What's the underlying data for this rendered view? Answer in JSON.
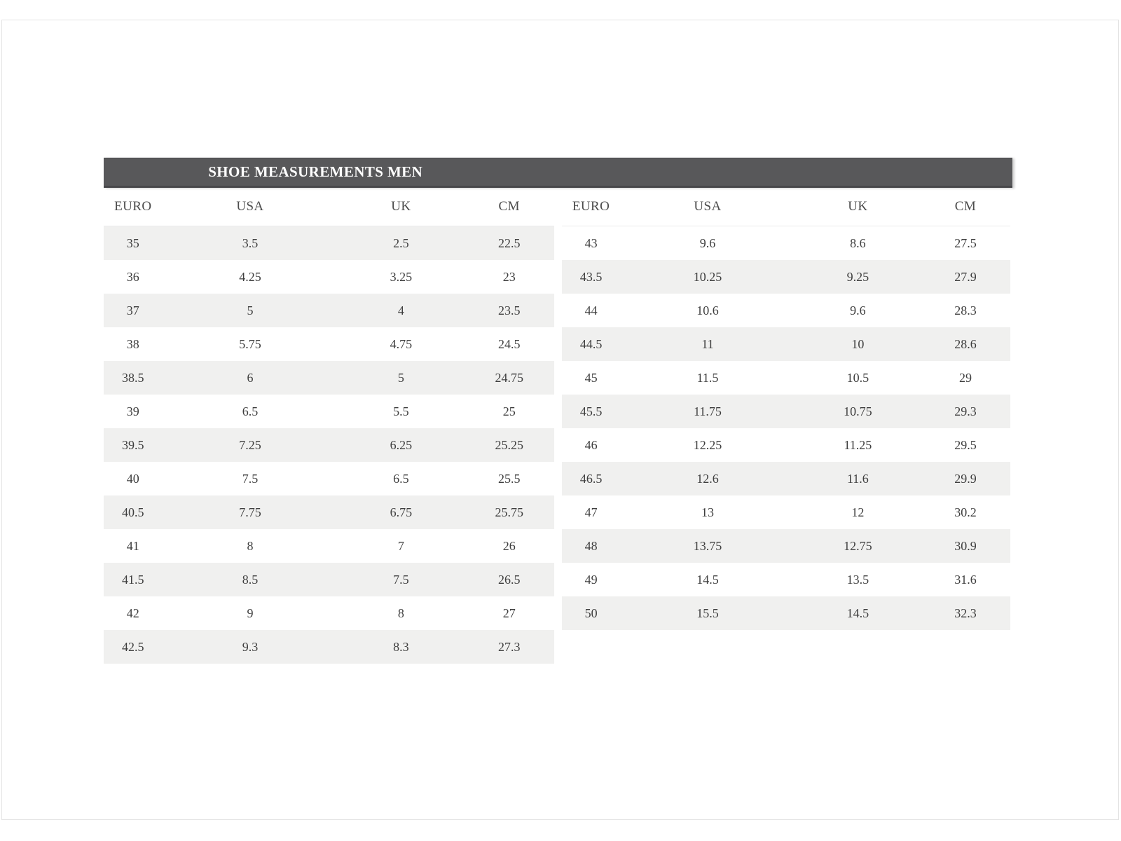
{
  "title_bar": {
    "label": "SHOE MEASUREMENTS MEN"
  },
  "columns": [
    "EURO",
    "USA",
    "UK",
    "CM"
  ],
  "tables": {
    "left": {
      "rows": [
        [
          "35",
          "3.5",
          "2.5",
          "22.5"
        ],
        [
          "36",
          "4.25",
          "3.25",
          "23"
        ],
        [
          "37",
          "5",
          "4",
          "23.5"
        ],
        [
          "38",
          "5.75",
          "4.75",
          "24.5"
        ],
        [
          "38.5",
          "6",
          "5",
          "24.75"
        ],
        [
          "39",
          "6.5",
          "5.5",
          "25"
        ],
        [
          "39.5",
          "7.25",
          "6.25",
          "25.25"
        ],
        [
          "40",
          "7.5",
          "6.5",
          "25.5"
        ],
        [
          "40.5",
          "7.75",
          "6.75",
          "25.75"
        ],
        [
          "41",
          "8",
          "7",
          "26"
        ],
        [
          "41.5",
          "8.5",
          "7.5",
          "26.5"
        ],
        [
          "42",
          "9",
          "8",
          "27"
        ],
        [
          "42.5",
          "9.3",
          "8.3",
          "27.3"
        ]
      ]
    },
    "right": {
      "rows": [
        [
          "43",
          "9.6",
          "8.6",
          "27.5"
        ],
        [
          "43.5",
          "10.25",
          "9.25",
          "27.9"
        ],
        [
          "44",
          "10.6",
          "9.6",
          "28.3"
        ],
        [
          "44.5",
          "11",
          "10",
          "28.6"
        ],
        [
          "45",
          "11.5",
          "10.5",
          "29"
        ],
        [
          "45.5",
          "11.75",
          "10.75",
          "29.3"
        ],
        [
          "46",
          "12.25",
          "11.25",
          "29.5"
        ],
        [
          "46.5",
          "12.6",
          "11.6",
          "29.9"
        ],
        [
          "47",
          "13",
          "12",
          "30.2"
        ],
        [
          "48",
          "13.75",
          "12.75",
          "30.9"
        ],
        [
          "49",
          "14.5",
          "13.5",
          "31.6"
        ],
        [
          "50",
          "15.5",
          "14.5",
          "32.3"
        ]
      ]
    }
  },
  "colors": {
    "titlebar_bg": "#58585a",
    "stripe": "#f0f0ef",
    "frame_border": "#e4e4e4",
    "title_text": "#ffffff",
    "body_text": "#3e3e3e"
  }
}
